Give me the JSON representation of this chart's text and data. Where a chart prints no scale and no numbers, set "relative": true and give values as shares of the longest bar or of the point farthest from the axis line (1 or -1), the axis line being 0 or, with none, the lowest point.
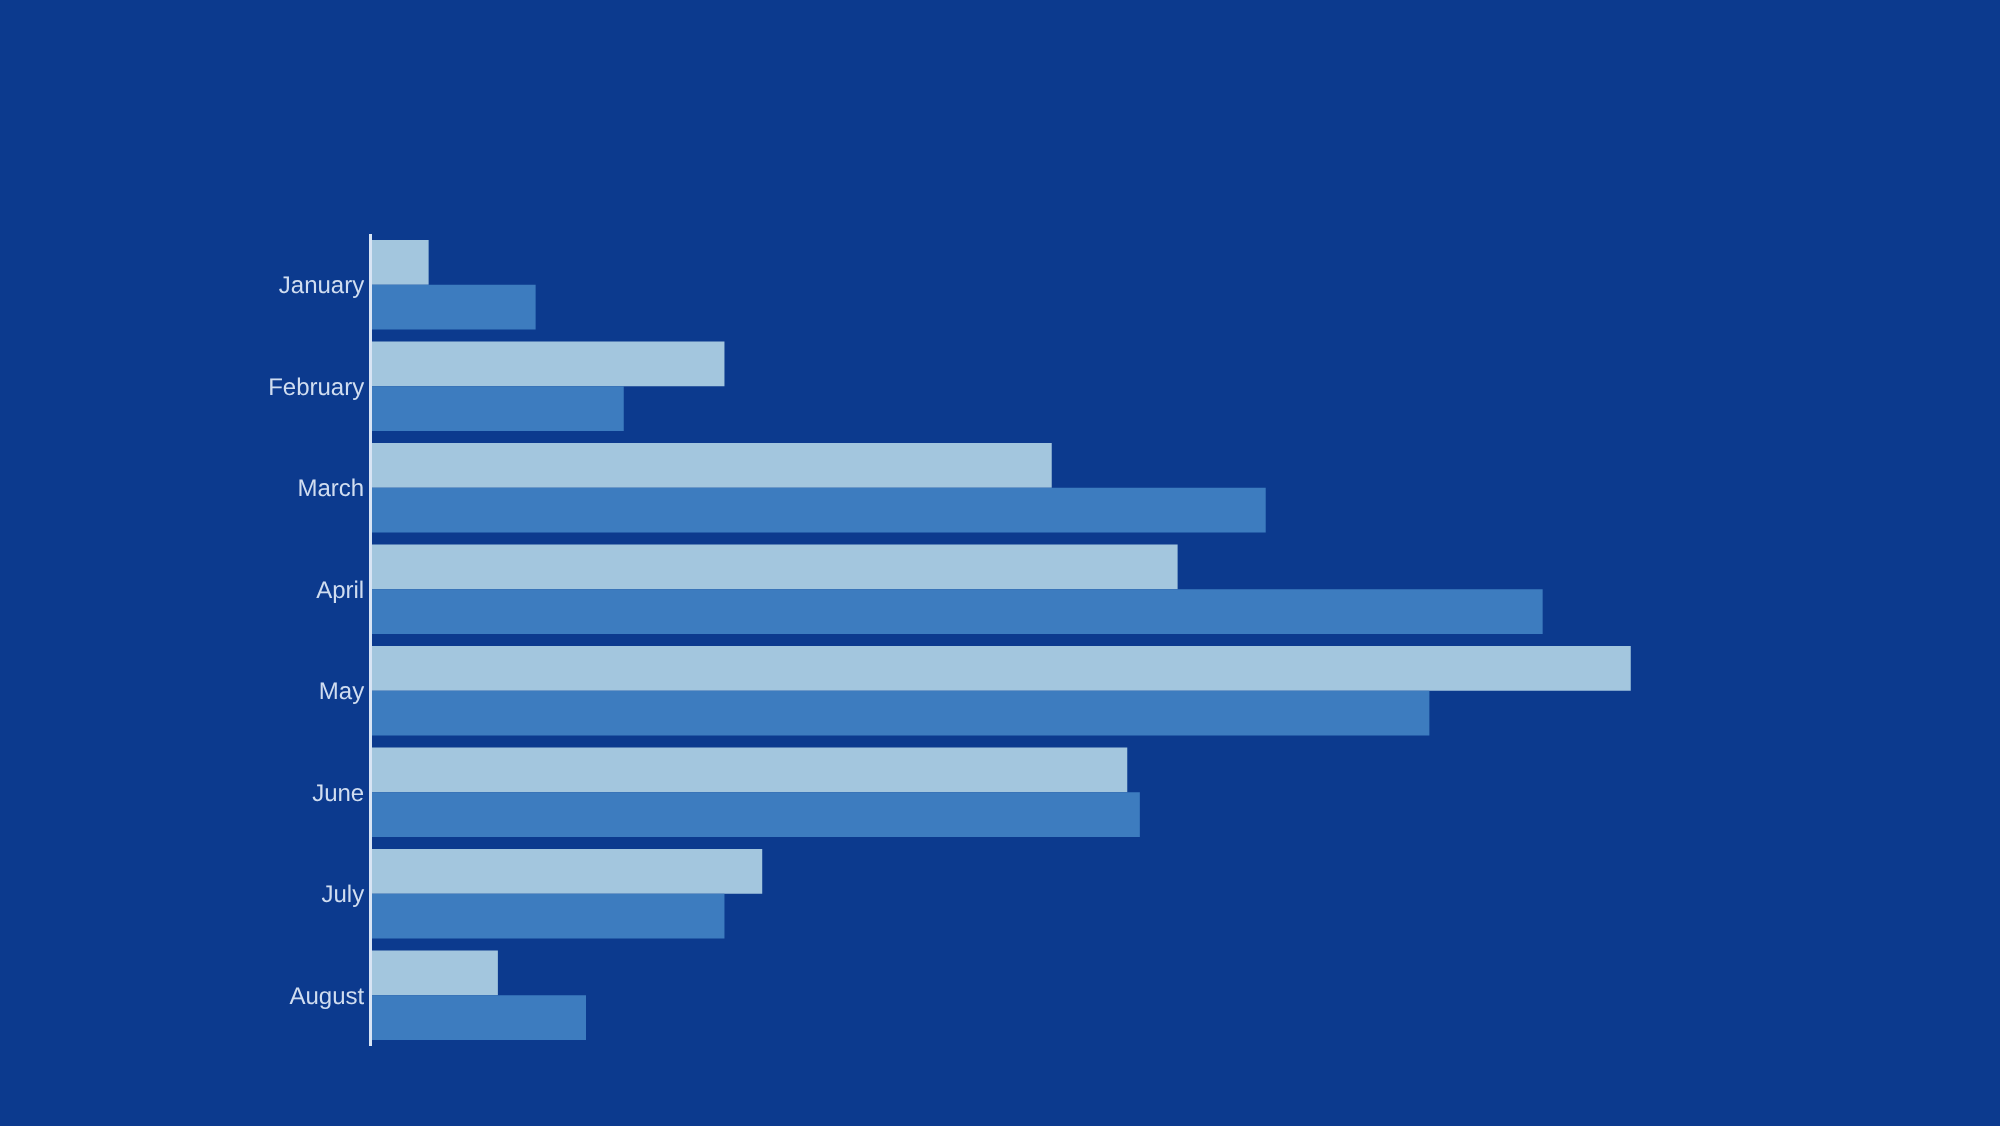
{
  "chart_data": {
    "type": "bar",
    "orientation": "horizontal",
    "relative": true,
    "categories": [
      "January",
      "February",
      "March",
      "April",
      "May",
      "June",
      "July",
      "August"
    ],
    "series": [
      {
        "color": "#a3c6de",
        "values": [
          0.045,
          0.28,
          0.54,
          0.64,
          1,
          0.6,
          0.31,
          0.1
        ]
      },
      {
        "color": "#3d7cbf",
        "values": [
          0.13,
          0.2,
          0.71,
          0.93,
          0.84,
          0.61,
          0.28,
          0.17
        ]
      }
    ]
  }
}
